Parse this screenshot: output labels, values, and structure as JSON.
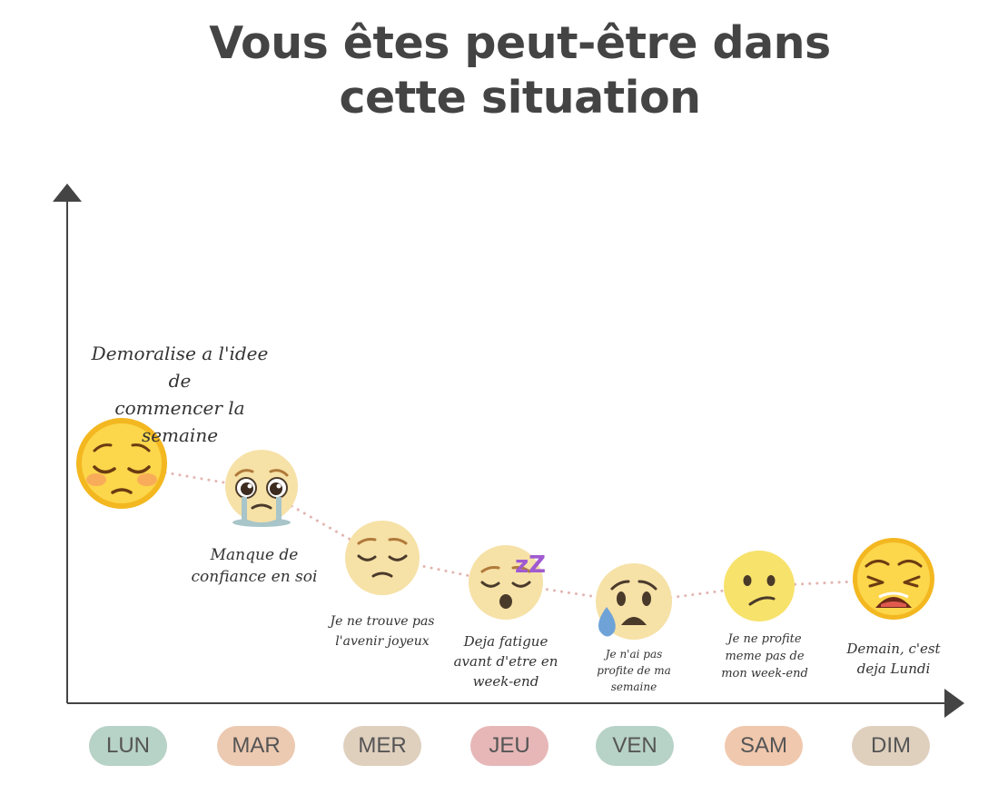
{
  "title": {
    "line1": "Vous êtes peut-être dans",
    "line2": "cette situation"
  },
  "days": [
    {
      "label": "LUN",
      "color": "#b7d2c6",
      "face": "pensive-face-icon",
      "note": [
        "Demoralise a l'idee de",
        "commencer la semaine"
      ]
    },
    {
      "label": "MAR",
      "color": "#ecc9b1",
      "face": "holding-back-tears-face-icon",
      "note": [
        "Manque de",
        "confiance en soi"
      ]
    },
    {
      "label": "MER",
      "color": "#dfd0be",
      "face": "relieved-sad-face-icon",
      "note": [
        "Je ne trouve pas",
        "l'avenir joyeux"
      ]
    },
    {
      "label": "JEU",
      "color": "#e7b7b8",
      "face": "sleeping-face-icon",
      "note": [
        "Deja fatigue",
        "avant d'etre en",
        "week-end"
      ]
    },
    {
      "label": "VEN",
      "color": "#b7d2c6",
      "face": "sad-sweat-face-icon",
      "note": [
        "Je n'ai pas",
        "profite de ma",
        "semaine"
      ]
    },
    {
      "label": "SAM",
      "color": "#f0c8ae",
      "face": "confused-face-icon",
      "note": [
        "Je ne profite",
        "meme pas de",
        "mon week-end"
      ]
    },
    {
      "label": "DIM",
      "color": "#dfd0be",
      "face": "weary-face-icon",
      "note": [
        "Demain, c'est",
        "deja Lundi"
      ]
    }
  ],
  "decorations": {
    "sleep_text": "zZ"
  },
  "colors": {
    "axis": "#444444",
    "path": "#e2b5b0",
    "text": "#333333",
    "face": "#f6e1a7"
  }
}
